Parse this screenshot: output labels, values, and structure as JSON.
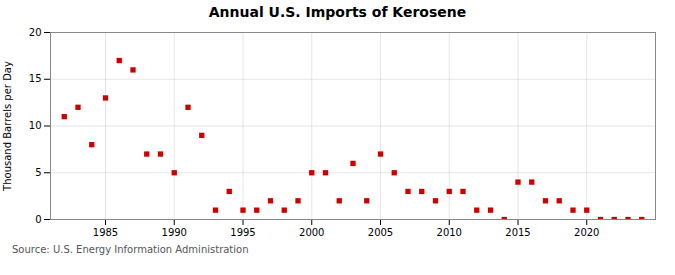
{
  "chart_data": {
    "type": "scatter",
    "title": "Annual U.S. Imports of Kerosene",
    "ylabel": "Thousand Barrels per Day",
    "annotations": [
      "Source: U.S. Energy Information Administration"
    ],
    "x": [
      1982,
      1983,
      1984,
      1985,
      1986,
      1987,
      1988,
      1989,
      1990,
      1991,
      1992,
      1993,
      1994,
      1995,
      1996,
      1997,
      1998,
      1999,
      2000,
      2001,
      2002,
      2003,
      2004,
      2005,
      2006,
      2007,
      2008,
      2009,
      2010,
      2011,
      2012,
      2013,
      2014,
      2015,
      2016,
      2017,
      2018,
      2019,
      2020,
      2021,
      2022,
      2023,
      2024
    ],
    "values": [
      11,
      12,
      8,
      13,
      17,
      16,
      7,
      7,
      5,
      12,
      9,
      1,
      3,
      1,
      1,
      2,
      1,
      2,
      5,
      5,
      2,
      6,
      2,
      7,
      5,
      3,
      3,
      2,
      3,
      3,
      1,
      1,
      0,
      4,
      4,
      2,
      2,
      1,
      1,
      0,
      0,
      0,
      0
    ],
    "color": "#cc0000",
    "marker": "square",
    "xlim": [
      1981,
      2025
    ],
    "xticks": [
      1985,
      1990,
      1995,
      2000,
      2005,
      2010,
      2015,
      2020
    ],
    "ylim": [
      0,
      20
    ],
    "yticks": [
      0,
      5,
      10,
      15,
      20
    ],
    "grid": true
  }
}
